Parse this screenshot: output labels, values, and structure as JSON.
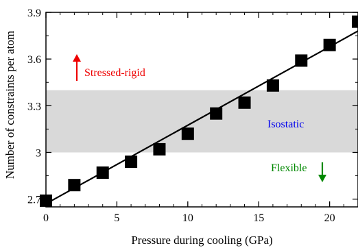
{
  "chart_data": {
    "type": "scatter",
    "xlabel": "Pressure during cooling (GPa)",
    "ylabel": "Number of constraints per atom",
    "xlim": [
      0,
      22
    ],
    "ylim": [
      2.65,
      3.9
    ],
    "x_ticks": [
      0,
      5,
      10,
      15,
      20
    ],
    "x_tick_labels": [
      "0",
      "5",
      "10",
      "15",
      "20"
    ],
    "y_ticks": [
      2.7,
      3,
      3.3,
      3.6,
      3.9
    ],
    "y_tick_labels": [
      "2.7",
      "3",
      "3.3",
      "3.6",
      "3.9"
    ],
    "grid": false,
    "series": [
      {
        "marker": "square",
        "color": "#000000",
        "x": [
          0,
          2,
          4,
          6,
          8,
          10,
          12,
          14,
          16,
          18,
          20,
          22
        ],
        "y": [
          2.69,
          2.79,
          2.87,
          2.94,
          3.02,
          3.12,
          3.25,
          3.32,
          3.43,
          3.59,
          3.69,
          3.84
        ]
      }
    ],
    "fit_line": {
      "color": "#000000",
      "x": [
        0,
        22
      ],
      "y": [
        2.67,
        3.78
      ]
    },
    "band": {
      "y_from": 3.0,
      "y_to": 3.4,
      "color": "#d9d9d9",
      "label": "Isostatic",
      "label_color": "#0000ee"
    },
    "annotations": [
      {
        "text": "Stressed-rigid",
        "color": "#ee0000",
        "arrow": "up"
      },
      {
        "text": "Flexible",
        "color": "#008800",
        "arrow": "down"
      }
    ]
  }
}
